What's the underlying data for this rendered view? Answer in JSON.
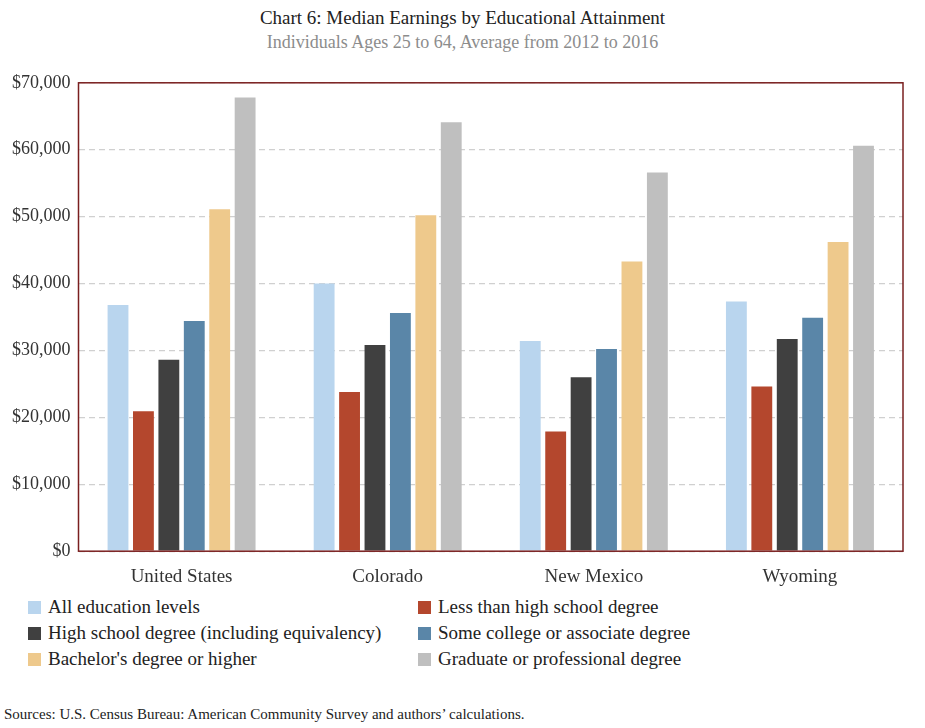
{
  "chart_data": {
    "type": "bar",
    "title": "Chart 6: Median Earnings by Educational Attainment",
    "subtitle": "Individuals Ages 25 to 64, Average from 2012 to 2016",
    "source": "Sources: U.S. Census Bureau: American Community Survey and authors’ calculations.",
    "categories": [
      "United States",
      "Colorado",
      "New Mexico",
      "Wyoming"
    ],
    "series": [
      {
        "name": "All education levels",
        "color": "#b9d5ee",
        "values": [
          36800,
          40000,
          31400,
          37300
        ]
      },
      {
        "name": "Less than high school degree",
        "color": "#b4472d",
        "values": [
          20900,
          23800,
          17900,
          24600
        ]
      },
      {
        "name": "High school degree (including equivalency)",
        "color": "#404040",
        "values": [
          28600,
          30800,
          26000,
          31700
        ]
      },
      {
        "name": "Some college or associate degree",
        "color": "#5a86a8",
        "values": [
          34400,
          35600,
          30200,
          34900
        ]
      },
      {
        "name": "Bachelor's degree or higher",
        "color": "#eec98c",
        "values": [
          51100,
          50200,
          43300,
          46200
        ]
      },
      {
        "name": "Graduate or professional degree",
        "color": "#bfbfbf",
        "values": [
          67800,
          64100,
          56600,
          60600
        ]
      }
    ],
    "ylim": [
      0,
      70000
    ],
    "yticks": [
      {
        "value": 0,
        "label": "$0"
      },
      {
        "value": 10000,
        "label": "$10,000"
      },
      {
        "value": 20000,
        "label": "$20,000"
      },
      {
        "value": 30000,
        "label": "$30,000"
      },
      {
        "value": 40000,
        "label": "$40,000"
      },
      {
        "value": 50000,
        "label": "$50,000"
      },
      {
        "value": 60000,
        "label": "$60,000"
      },
      {
        "value": 70000,
        "label": "$70,000"
      }
    ],
    "grid": true,
    "legend": "bottom"
  }
}
